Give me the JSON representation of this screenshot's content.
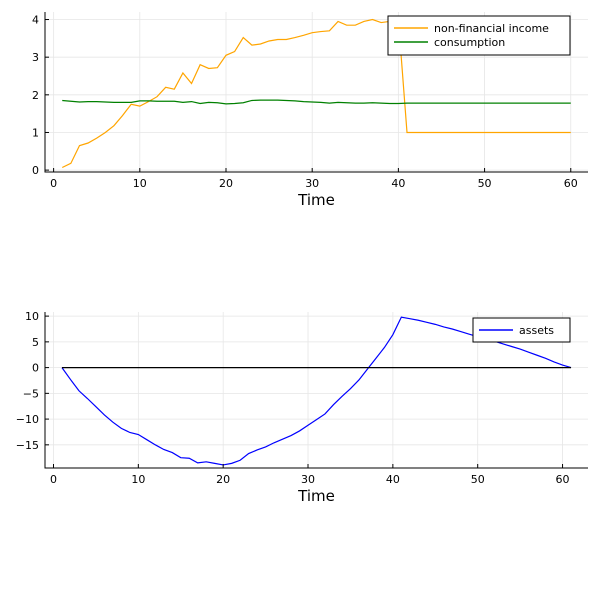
{
  "chart_data": [
    {
      "type": "line",
      "xlabel": "Time",
      "ylabel": "",
      "xlim": [
        -1,
        62
      ],
      "ylim": [
        -0.05,
        4.2
      ],
      "xticks": [
        0,
        10,
        20,
        30,
        40,
        50,
        60
      ],
      "yticks": [
        0,
        1,
        2,
        3,
        4
      ],
      "grid": true,
      "legend_position": "top-right",
      "series": [
        {
          "name": "non-financial income",
          "color": "#ffa500",
          "x": [
            1,
            2,
            3,
            4,
            5,
            6,
            7,
            8,
            9,
            10,
            11,
            12,
            13,
            14,
            15,
            16,
            17,
            18,
            19,
            20,
            21,
            22,
            23,
            24,
            25,
            26,
            27,
            28,
            29,
            30,
            31,
            32,
            33,
            34,
            35,
            36,
            37,
            38,
            39,
            40,
            41,
            42,
            43,
            44,
            45,
            46,
            47,
            48,
            49,
            50,
            51,
            52,
            53,
            54,
            55,
            56,
            57,
            58,
            59,
            60
          ],
          "y": [
            0.07,
            0.18,
            0.65,
            0.72,
            0.85,
            1.0,
            1.18,
            1.45,
            1.75,
            1.7,
            1.82,
            1.95,
            2.2,
            2.15,
            2.58,
            2.3,
            2.8,
            2.7,
            2.72,
            3.05,
            3.15,
            3.52,
            3.32,
            3.35,
            3.43,
            3.47,
            3.47,
            3.52,
            3.58,
            3.65,
            3.68,
            3.7,
            3.95,
            3.85,
            3.85,
            3.95,
            4.0,
            3.92,
            3.95,
            4.0,
            1.0,
            1.0,
            1.0,
            1.0,
            1.0,
            1.0,
            1.0,
            1.0,
            1.0,
            1.0,
            1.0,
            1.0,
            1.0,
            1.0,
            1.0,
            1.0,
            1.0,
            1.0,
            1.0,
            1.0
          ]
        },
        {
          "name": "consumption",
          "color": "#008000",
          "x": [
            1,
            2,
            3,
            4,
            5,
            6,
            7,
            8,
            9,
            10,
            11,
            12,
            13,
            14,
            15,
            16,
            17,
            18,
            19,
            20,
            21,
            22,
            23,
            24,
            25,
            26,
            27,
            28,
            29,
            30,
            31,
            32,
            33,
            34,
            35,
            36,
            37,
            38,
            39,
            40,
            41,
            42,
            43,
            44,
            45,
            46,
            47,
            48,
            49,
            50,
            51,
            52,
            53,
            54,
            55,
            56,
            57,
            58,
            59,
            60
          ],
          "y": [
            1.85,
            1.83,
            1.81,
            1.82,
            1.82,
            1.81,
            1.8,
            1.8,
            1.8,
            1.84,
            1.84,
            1.83,
            1.83,
            1.83,
            1.8,
            1.82,
            1.77,
            1.8,
            1.79,
            1.76,
            1.77,
            1.79,
            1.85,
            1.86,
            1.86,
            1.86,
            1.85,
            1.84,
            1.82,
            1.81,
            1.8,
            1.78,
            1.8,
            1.79,
            1.78,
            1.78,
            1.79,
            1.78,
            1.77,
            1.77,
            1.78,
            1.78,
            1.78,
            1.78,
            1.78,
            1.78,
            1.78,
            1.78,
            1.78,
            1.78,
            1.78,
            1.78,
            1.78,
            1.78,
            1.78,
            1.78,
            1.78,
            1.78,
            1.78,
            1.78
          ]
        }
      ]
    },
    {
      "type": "line",
      "xlabel": "Time",
      "ylabel": "",
      "xlim": [
        -1,
        63
      ],
      "ylim": [
        -19.5,
        10.8
      ],
      "xticks": [
        0,
        10,
        20,
        30,
        40,
        50,
        60
      ],
      "yticks": [
        10,
        5,
        0,
        -5,
        -10,
        -15
      ],
      "grid": true,
      "legend_position": "top-right",
      "series": [
        {
          "name": "assets",
          "color": "#0000ff",
          "x": [
            1,
            2,
            3,
            4,
            5,
            6,
            7,
            8,
            9,
            10,
            11,
            12,
            13,
            14,
            15,
            16,
            17,
            18,
            19,
            20,
            21,
            22,
            23,
            24,
            25,
            26,
            27,
            28,
            29,
            30,
            31,
            32,
            33,
            34,
            35,
            36,
            37,
            38,
            39,
            40,
            41,
            42,
            43,
            44,
            45,
            46,
            47,
            48,
            49,
            50,
            51,
            52,
            53,
            54,
            55,
            56,
            57,
            58,
            59,
            60,
            61
          ],
          "y": [
            0,
            -2.3,
            -4.5,
            -6.0,
            -7.6,
            -9.2,
            -10.6,
            -11.8,
            -12.6,
            -13.0,
            -14.0,
            -15.0,
            -15.9,
            -16.5,
            -17.5,
            -17.6,
            -18.5,
            -18.3,
            -18.6,
            -18.9,
            -18.6,
            -18.0,
            -16.7,
            -16.0,
            -15.4,
            -14.6,
            -13.9,
            -13.2,
            -12.3,
            -11.2,
            -10.1,
            -9.0,
            -7.2,
            -5.6,
            -4.1,
            -2.4,
            -0.3,
            1.8,
            3.9,
            6.4,
            9.8,
            9.5,
            9.2,
            8.8,
            8.4,
            7.9,
            7.5,
            7.0,
            6.5,
            6.0,
            5.6,
            5.1,
            4.6,
            4.1,
            3.6,
            3.0,
            2.4,
            1.8,
            1.1,
            0.5,
            0.0
          ]
        },
        {
          "name": "",
          "color": "#000000",
          "x": [
            1,
            61
          ],
          "y": [
            0,
            0
          ]
        }
      ]
    }
  ]
}
